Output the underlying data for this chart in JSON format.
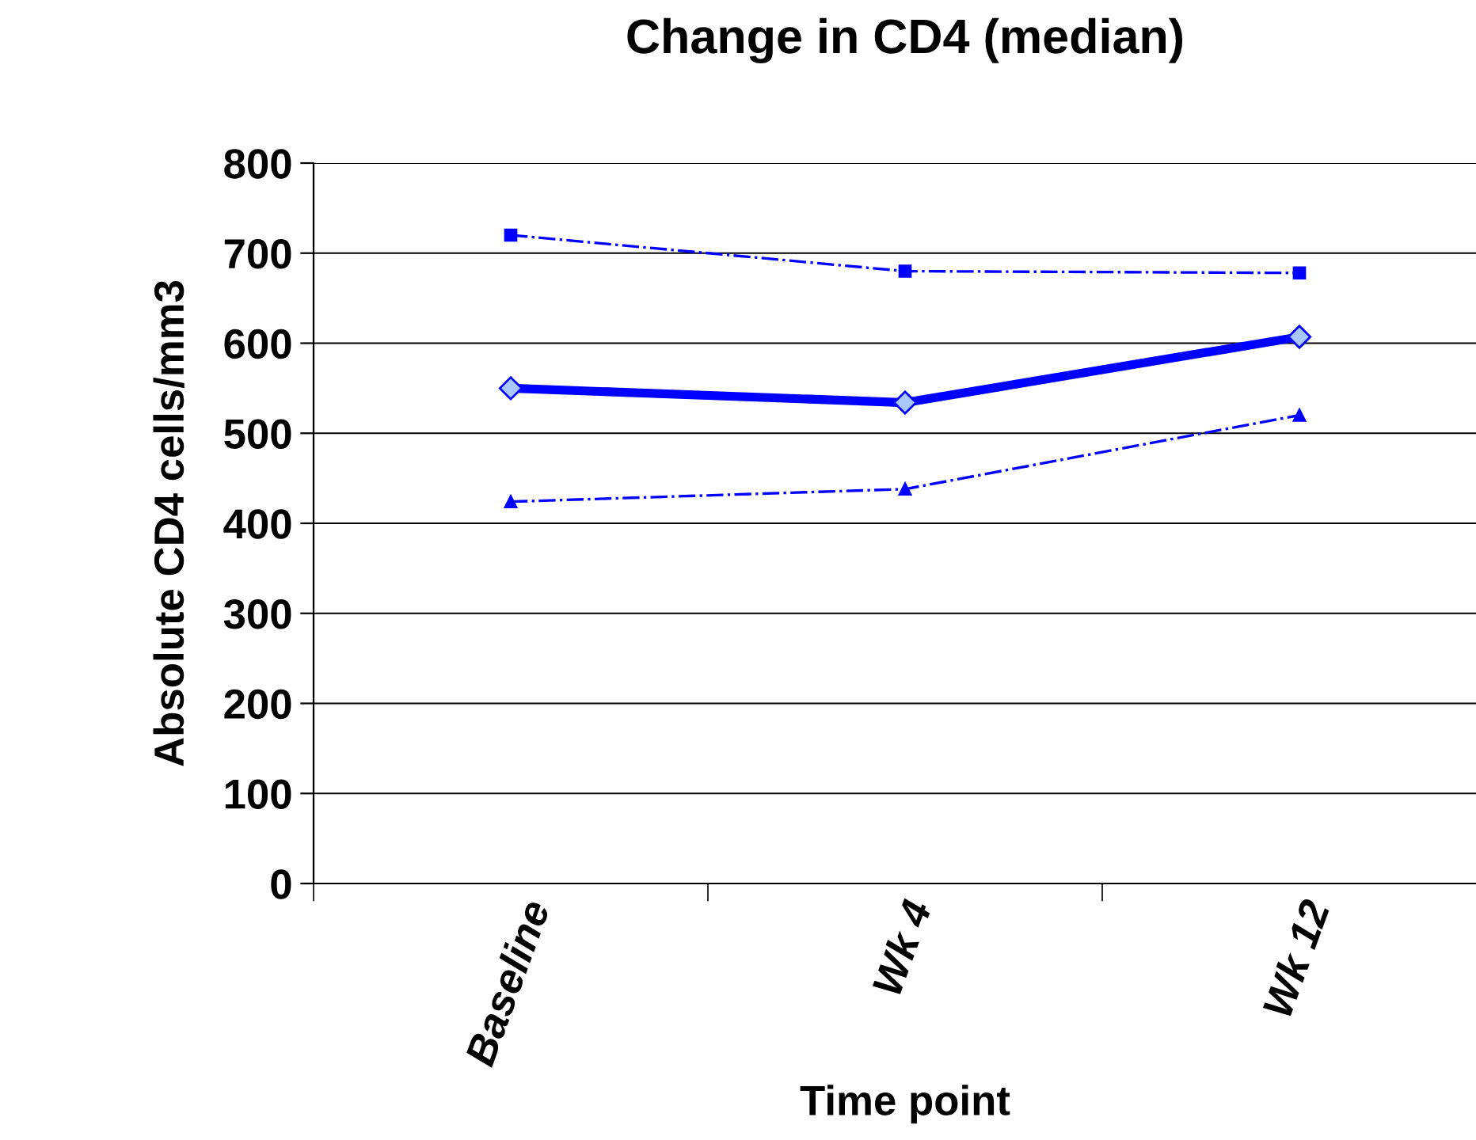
{
  "chart_data": {
    "type": "line",
    "title": "Change in CD4 (median)",
    "xlabel": "Time point",
    "ylabel": "Absolute CD4 cells/mm3",
    "categories": [
      "Baseline",
      "Wk 4",
      "Wk 12"
    ],
    "series": [
      {
        "color": "#0000ff",
        "values": [
          720,
          680,
          678
        ],
        "marker": "square",
        "line_style": "dashdot"
      },
      {
        "color": "#0000ff",
        "values": [
          550,
          534,
          607
        ],
        "marker": "diamond",
        "line_style": "solid"
      },
      {
        "color": "#0000ff",
        "values": [
          424,
          438,
          520
        ],
        "marker": "triangle",
        "line_style": "dashdot"
      }
    ],
    "ylim": [
      0,
      800
    ],
    "yticks": [
      0,
      100,
      200,
      300,
      400,
      500,
      600,
      700,
      800
    ],
    "grid": "y",
    "legend": false
  }
}
